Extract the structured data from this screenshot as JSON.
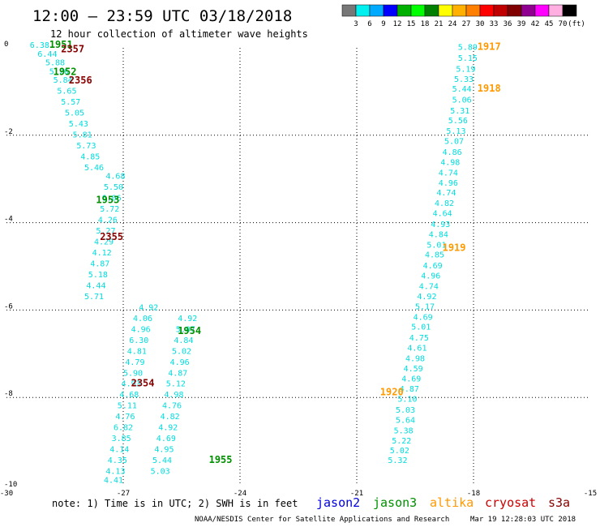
{
  "header": {
    "title": "12:00 – 23:59 UTC 03/18/2018",
    "subtitle": "12 hour collection of altimeter wave heights"
  },
  "colorbar": {
    "colors": [
      "#777777",
      "#00f0f0",
      "#00aaff",
      "#0000ff",
      "#00b000",
      "#00ff00",
      "#008000",
      "#ffff00",
      "#ffb000",
      "#ff8000",
      "#ff0000",
      "#c00000",
      "#800000",
      "#900090",
      "#ff00ff",
      "#ffb0e0",
      "#000000"
    ],
    "labels": [
      "3",
      "6",
      "9",
      "12",
      "15",
      "18",
      "21",
      "24",
      "27",
      "30",
      "33",
      "36",
      "39",
      "42",
      "45",
      "70"
    ],
    "unit": "(ft)"
  },
  "note": "note: 1) Time is in UTC; 2) SWH is in feet",
  "legend": [
    {
      "name": "jason2",
      "color": "#0000dd"
    },
    {
      "name": "jason3",
      "color": "#009000"
    },
    {
      "name": "altika",
      "color": "#ff9900"
    },
    {
      "name": "cryosat",
      "color": "#cc0000"
    },
    {
      "name": "s3a",
      "color": "#880000"
    }
  ],
  "footer": {
    "source": "NOAA/NESDIS Center for Satellite Applications and Research",
    "timestamp": "Mar 19 12:28:03 UTC 2018"
  },
  "chart_data": {
    "type": "scatter",
    "xlim": [
      -30,
      -15
    ],
    "ylim": [
      -10,
      0
    ],
    "x_ticks": [
      -30,
      -27,
      -24,
      -21,
      -18,
      -15
    ],
    "y_ticks": [
      0,
      -2,
      -4,
      -6,
      -8,
      -10
    ],
    "grid": true,
    "point_color": "#00dddd",
    "series": [
      {
        "name": "altika",
        "values": [
          {
            "x": -18.4,
            "y": -0.05,
            "v": "5.89"
          },
          {
            "x": -18.4,
            "y": -0.3,
            "v": "5.15"
          },
          {
            "x": -18.45,
            "y": -0.55,
            "v": "5.19"
          },
          {
            "x": -18.5,
            "y": -0.78,
            "v": "5.33"
          },
          {
            "x": -18.55,
            "y": -1.0,
            "v": "5.44"
          },
          {
            "x": -18.55,
            "y": -1.25,
            "v": "5.06"
          },
          {
            "x": -18.6,
            "y": -1.5,
            "v": "5.31"
          },
          {
            "x": -18.65,
            "y": -1.73,
            "v": "5.56"
          },
          {
            "x": -18.7,
            "y": -1.97,
            "v": "5.13"
          },
          {
            "x": -18.75,
            "y": -2.2,
            "v": "5.07"
          },
          {
            "x": -18.8,
            "y": -2.45,
            "v": "4.86"
          },
          {
            "x": -18.85,
            "y": -2.68,
            "v": "4.98"
          },
          {
            "x": -18.9,
            "y": -2.92,
            "v": "4.74"
          },
          {
            "x": -18.9,
            "y": -3.15,
            "v": "4.96"
          },
          {
            "x": -18.95,
            "y": -3.38,
            "v": "4.74"
          },
          {
            "x": -19.0,
            "y": -3.62,
            "v": "4.82"
          },
          {
            "x": -19.05,
            "y": -3.85,
            "v": "4.64"
          },
          {
            "x": -19.1,
            "y": -4.1,
            "v": "4.93"
          },
          {
            "x": -19.15,
            "y": -4.33,
            "v": "4.84"
          },
          {
            "x": -19.2,
            "y": -4.57,
            "v": "5.01"
          },
          {
            "x": -19.25,
            "y": -4.8,
            "v": "4.85"
          },
          {
            "x": -19.3,
            "y": -5.05,
            "v": "4.69"
          },
          {
            "x": -19.35,
            "y": -5.28,
            "v": "4.96"
          },
          {
            "x": -19.4,
            "y": -5.52,
            "v": "4.74"
          },
          {
            "x": -19.45,
            "y": -5.75,
            "v": "4.92"
          },
          {
            "x": -19.5,
            "y": -5.98,
            "v": "5.17"
          },
          {
            "x": -19.55,
            "y": -6.22,
            "v": "4.69"
          },
          {
            "x": -19.6,
            "y": -6.45,
            "v": "5.01"
          },
          {
            "x": -19.65,
            "y": -6.7,
            "v": "4.75"
          },
          {
            "x": -19.7,
            "y": -6.93,
            "v": "4.61"
          },
          {
            "x": -19.75,
            "y": -7.17,
            "v": "4.98"
          },
          {
            "x": -19.8,
            "y": -7.4,
            "v": "4.59"
          },
          {
            "x": -19.85,
            "y": -7.63,
            "v": "4.69"
          },
          {
            "x": -19.9,
            "y": -7.87,
            "v": "4.87"
          },
          {
            "x": -19.95,
            "y": -8.1,
            "v": "5.10"
          },
          {
            "x": -20.0,
            "y": -8.35,
            "v": "5.03"
          },
          {
            "x": -20.0,
            "y": -8.58,
            "v": "5.64"
          },
          {
            "x": -20.05,
            "y": -8.82,
            "v": "5.38"
          },
          {
            "x": -20.1,
            "y": -9.05,
            "v": "5.22"
          },
          {
            "x": -20.15,
            "y": -9.28,
            "v": "5.02"
          },
          {
            "x": -20.2,
            "y": -9.5,
            "v": "5.32"
          }
        ]
      },
      {
        "name": "jason3",
        "values": [
          {
            "x": -26.6,
            "y": -6.0,
            "v": "4.92"
          },
          {
            "x": -26.75,
            "y": -6.25,
            "v": "4.06"
          },
          {
            "x": -26.8,
            "y": -6.5,
            "v": "4.96"
          },
          {
            "x": -26.85,
            "y": -6.75,
            "v": "6.30"
          },
          {
            "x": -26.9,
            "y": -7.0,
            "v": "4.81"
          },
          {
            "x": -26.95,
            "y": -7.25,
            "v": "4.79"
          },
          {
            "x": -27.0,
            "y": -7.5,
            "v": "5.90"
          },
          {
            "x": -27.05,
            "y": -7.75,
            "v": "4.93"
          },
          {
            "x": -27.1,
            "y": -8.0,
            "v": "4.68"
          },
          {
            "x": -27.15,
            "y": -8.25,
            "v": "5.11"
          },
          {
            "x": -27.2,
            "y": -8.5,
            "v": "4.76"
          },
          {
            "x": -27.25,
            "y": -8.75,
            "v": "6.82"
          },
          {
            "x": -27.3,
            "y": -9.0,
            "v": "3.85"
          },
          {
            "x": -27.35,
            "y": -9.25,
            "v": "4.14"
          },
          {
            "x": -27.4,
            "y": -9.5,
            "v": "4.35"
          },
          {
            "x": -27.45,
            "y": -9.75,
            "v": "4.13"
          },
          {
            "x": -27.5,
            "y": -9.95,
            "v": "4.41"
          }
        ]
      },
      {
        "name": "jason3",
        "values": [
          {
            "x": -27.45,
            "y": -3.0,
            "v": "4.68"
          },
          {
            "x": -27.5,
            "y": -3.25,
            "v": "5.50"
          },
          {
            "x": -27.55,
            "y": -3.5,
            "v": "6.06"
          },
          {
            "x": -27.6,
            "y": -3.75,
            "v": "5.72"
          },
          {
            "x": -27.65,
            "y": -4.0,
            "v": "4.26"
          },
          {
            "x": -27.7,
            "y": -4.25,
            "v": "5.27"
          },
          {
            "x": -27.75,
            "y": -4.5,
            "v": "4.29"
          },
          {
            "x": -27.8,
            "y": -4.75,
            "v": "4.12"
          },
          {
            "x": -27.85,
            "y": -5.0,
            "v": "4.87"
          },
          {
            "x": -27.9,
            "y": -5.25,
            "v": "5.18"
          },
          {
            "x": -27.95,
            "y": -5.5,
            "v": "4.44"
          },
          {
            "x": -28.0,
            "y": -5.75,
            "v": "5.71"
          }
        ]
      },
      {
        "name": "jason3",
        "values": [
          {
            "x": -25.6,
            "y": -6.25,
            "v": "4.92"
          },
          {
            "x": -25.65,
            "y": -6.5,
            "v": "5.07"
          },
          {
            "x": -25.7,
            "y": -6.75,
            "v": "4.84"
          },
          {
            "x": -25.75,
            "y": -7.0,
            "v": "5.02"
          },
          {
            "x": -25.8,
            "y": -7.25,
            "v": "4.96"
          },
          {
            "x": -25.85,
            "y": -7.5,
            "v": "4.87"
          },
          {
            "x": -25.9,
            "y": -7.75,
            "v": "5.12"
          },
          {
            "x": -25.95,
            "y": -8.0,
            "v": "4.98"
          },
          {
            "x": -26.0,
            "y": -8.25,
            "v": "4.76"
          },
          {
            "x": -26.05,
            "y": -8.5,
            "v": "4.82"
          },
          {
            "x": -26.1,
            "y": -8.75,
            "v": "4.92"
          },
          {
            "x": -26.15,
            "y": -9.0,
            "v": "4.69"
          },
          {
            "x": -26.2,
            "y": -9.25,
            "v": "4.95"
          },
          {
            "x": -26.25,
            "y": -9.5,
            "v": "5.44"
          },
          {
            "x": -26.3,
            "y": -9.75,
            "v": "5.03"
          }
        ]
      },
      {
        "name": "jason3",
        "values": [
          {
            "x": -29.4,
            "y": 0.0,
            "v": "6.38"
          },
          {
            "x": -29.2,
            "y": -0.2,
            "v": "6.44"
          },
          {
            "x": -29.0,
            "y": -0.4,
            "v": "5.88"
          },
          {
            "x": -28.9,
            "y": -0.6,
            "v": "5.26"
          },
          {
            "x": -28.8,
            "y": -0.8,
            "v": "5.84"
          },
          {
            "x": -28.7,
            "y": -1.05,
            "v": "5.65"
          },
          {
            "x": -28.6,
            "y": -1.3,
            "v": "5.57"
          },
          {
            "x": -28.5,
            "y": -1.55,
            "v": "5.05"
          },
          {
            "x": -28.4,
            "y": -1.8,
            "v": "5.43"
          },
          {
            "x": -28.3,
            "y": -2.05,
            "v": "5.81"
          },
          {
            "x": -28.2,
            "y": -2.3,
            "v": "5.73"
          },
          {
            "x": -28.1,
            "y": -2.55,
            "v": "4.85"
          },
          {
            "x": -28.0,
            "y": -2.8,
            "v": "5.46"
          }
        ]
      }
    ],
    "time_labels": [
      {
        "text": "1917",
        "x": -17.9,
        "y": -0.05,
        "color": "#ff9900"
      },
      {
        "text": "1918",
        "x": -17.9,
        "y": -1.0,
        "color": "#ff9900"
      },
      {
        "text": "1919",
        "x": -18.8,
        "y": -4.65,
        "color": "#ff9900"
      },
      {
        "text": "1920",
        "x": -20.4,
        "y": -7.95,
        "color": "#ff9900"
      },
      {
        "text": "1951",
        "x": -28.9,
        "y": 0.0,
        "color": "#009000"
      },
      {
        "text": "1952",
        "x": -28.8,
        "y": -0.62,
        "color": "#009000"
      },
      {
        "text": "1953",
        "x": -27.7,
        "y": -3.55,
        "color": "#009000"
      },
      {
        "text": "1954",
        "x": -25.6,
        "y": -6.55,
        "color": "#009000"
      },
      {
        "text": "1955",
        "x": -24.8,
        "y": -9.5,
        "color": "#009000"
      },
      {
        "text": "2357",
        "x": -28.6,
        "y": -0.1,
        "color": "#880000"
      },
      {
        "text": "2356",
        "x": -28.4,
        "y": -0.82,
        "color": "#880000"
      },
      {
        "text": "2355",
        "x": -27.6,
        "y": -4.4,
        "color": "#880000"
      },
      {
        "text": "2354",
        "x": -26.8,
        "y": -7.75,
        "color": "#880000"
      }
    ]
  }
}
